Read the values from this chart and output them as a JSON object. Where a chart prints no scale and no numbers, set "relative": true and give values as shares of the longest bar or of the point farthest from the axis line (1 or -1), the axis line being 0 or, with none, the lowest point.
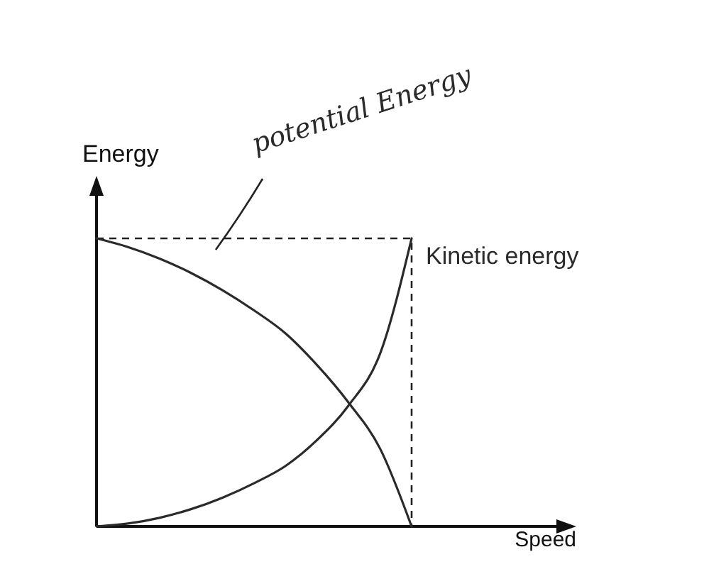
{
  "chart_data": {
    "type": "line",
    "relative": true,
    "xlabel": "Speed",
    "ylabel": "Energy",
    "legend": false,
    "categories": [
      null,
      null,
      null,
      null,
      null,
      null,
      null,
      null,
      null,
      null,
      null
    ],
    "series": [
      {
        "name": "potential Energy",
        "color": "#2a2a2a",
        "values": [
          1,
          0.97,
          0.93,
          0.88,
          0.82,
          0.75,
          0.67,
          0.56,
          0.43,
          0.27,
          0
        ]
      },
      {
        "name": "Kinetic energy",
        "color": "#2a2a2a",
        "values": [
          0,
          0.01,
          0.03,
          0.06,
          0.1,
          0.15,
          0.21,
          0.3,
          0.42,
          0.6,
          1
        ]
      }
    ]
  }
}
